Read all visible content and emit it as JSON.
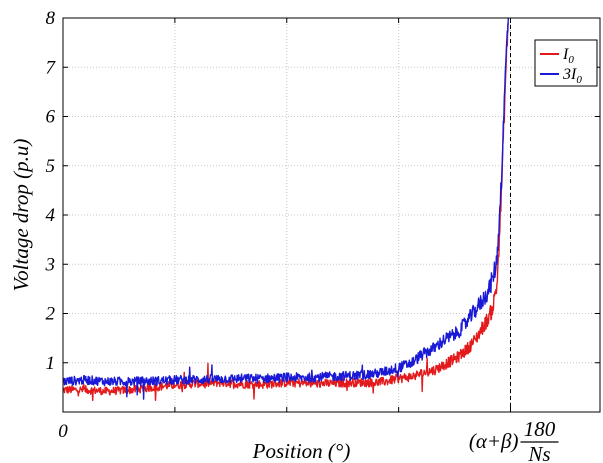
{
  "chart_data": {
    "type": "line",
    "title": "",
    "xlabel": "Position (°)",
    "ylabel": "Voltage drop (p.u)",
    "xlim": [
      0,
      1.2
    ],
    "ylim": [
      0,
      8
    ],
    "x_ticks": [
      0,
      0.25,
      0.5,
      0.75,
      1.0
    ],
    "x_tick_labels": [
      "0",
      "",
      "",
      "",
      ""
    ],
    "y_ticks": [
      1,
      2,
      3,
      4,
      5,
      6,
      7,
      8
    ],
    "y_tick_labels": [
      "1",
      "2",
      "3",
      "4",
      "5",
      "6",
      "7",
      "8"
    ],
    "grid": true,
    "legend_position": "top-right",
    "marker_line": {
      "x": 1.0,
      "label_prefix": "(α+β)",
      "label_numerator": "180",
      "label_denominator": "Ns"
    },
    "x": [
      0.0,
      0.05,
      0.1,
      0.15,
      0.2,
      0.25,
      0.3,
      0.35,
      0.4,
      0.45,
      0.5,
      0.55,
      0.6,
      0.65,
      0.7,
      0.72,
      0.75,
      0.78,
      0.8,
      0.83,
      0.85,
      0.88,
      0.9,
      0.92,
      0.94,
      0.95,
      0.96,
      0.97,
      0.98,
      0.985,
      0.99,
      0.995
    ],
    "series": [
      {
        "name": "I₀",
        "name_base": "I",
        "name_sub": "0",
        "color": "#e31a1c",
        "values": [
          0.45,
          0.45,
          0.42,
          0.45,
          0.5,
          0.55,
          0.58,
          0.6,
          0.57,
          0.56,
          0.6,
          0.58,
          0.58,
          0.6,
          0.6,
          0.62,
          0.68,
          0.72,
          0.78,
          0.85,
          0.95,
          1.1,
          1.25,
          1.45,
          1.75,
          1.9,
          2.1,
          2.6,
          4.5,
          5.8,
          7.0,
          8.0
        ]
      },
      {
        "name": "3I₀",
        "name_base": "3I",
        "name_sub": "0",
        "color": "#1a1ad6",
        "values": [
          0.62,
          0.65,
          0.62,
          0.62,
          0.63,
          0.65,
          0.66,
          0.67,
          0.68,
          0.68,
          0.7,
          0.7,
          0.72,
          0.74,
          0.78,
          0.82,
          0.9,
          1.0,
          1.15,
          1.3,
          1.45,
          1.6,
          1.8,
          2.05,
          2.3,
          2.45,
          2.7,
          3.1,
          4.8,
          6.0,
          7.2,
          8.0
        ]
      }
    ]
  }
}
